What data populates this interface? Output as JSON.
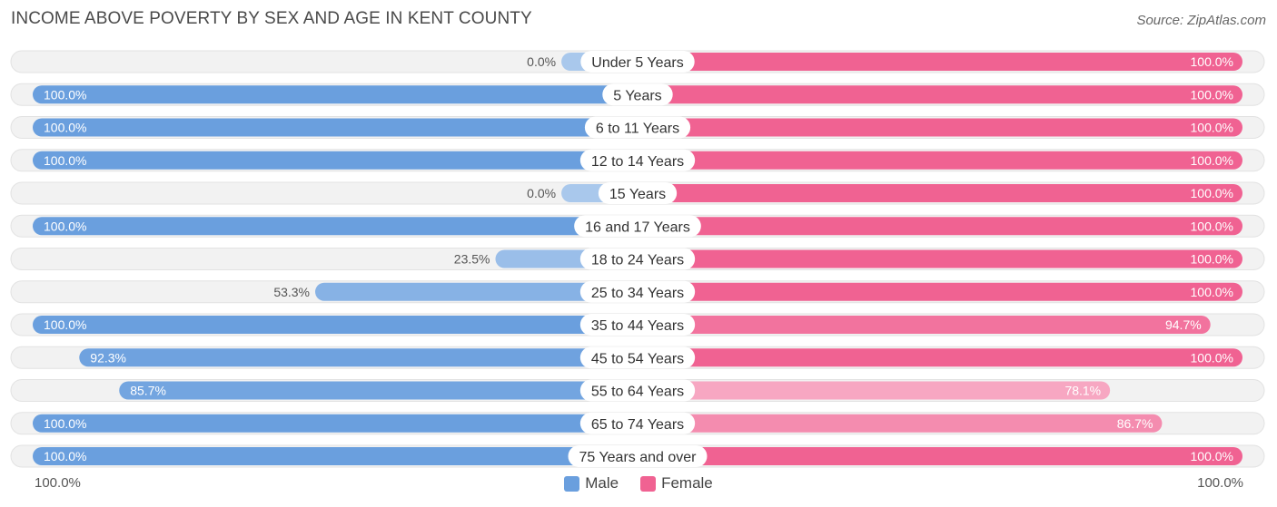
{
  "title": "INCOME ABOVE POVERTY BY SEX AND AGE IN KENT COUNTY",
  "source": "Source: ZipAtlas.com",
  "axis": {
    "left_label": "100.0%",
    "right_label": "100.0%"
  },
  "legend": {
    "male_label": "Male",
    "female_label": "Female"
  },
  "colors": {
    "male_strong": "#6a9fde",
    "male_light": "#a9c8ec",
    "female_strong": "#f06292",
    "female_light": "#f8b1c9",
    "track": "#efefef"
  },
  "chart_data": {
    "type": "bar",
    "orientation": "horizontal-diverging",
    "title": "INCOME ABOVE POVERTY BY SEX AND AGE IN KENT COUNTY",
    "xlim": [
      0,
      100
    ],
    "categories": [
      "Under 5 Years",
      "5 Years",
      "6 to 11 Years",
      "12 to 14 Years",
      "15 Years",
      "16 and 17 Years",
      "18 to 24 Years",
      "25 to 34 Years",
      "35 to 44 Years",
      "45 to 54 Years",
      "55 to 64 Years",
      "65 to 74 Years",
      "75 Years and over"
    ],
    "series": [
      {
        "name": "Male",
        "values": [
          0.0,
          100.0,
          100.0,
          100.0,
          0.0,
          100.0,
          23.5,
          53.3,
          100.0,
          92.3,
          85.7,
          100.0,
          100.0
        ],
        "labels": [
          "0.0%",
          "100.0%",
          "100.0%",
          "100.0%",
          "0.0%",
          "100.0%",
          "23.5%",
          "53.3%",
          "100.0%",
          "92.3%",
          "85.7%",
          "100.0%",
          "100.0%"
        ]
      },
      {
        "name": "Female",
        "values": [
          100.0,
          100.0,
          100.0,
          100.0,
          100.0,
          100.0,
          100.0,
          100.0,
          94.7,
          100.0,
          78.1,
          86.7,
          100.0
        ],
        "labels": [
          "100.0%",
          "100.0%",
          "100.0%",
          "100.0%",
          "100.0%",
          "100.0%",
          "100.0%",
          "100.0%",
          "94.7%",
          "100.0%",
          "78.1%",
          "86.7%",
          "100.0%"
        ]
      }
    ]
  }
}
